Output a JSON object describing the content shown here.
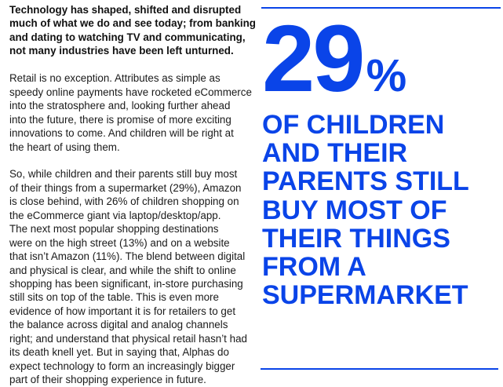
{
  "intro_lines": [
    "Technology has shaped, shifted and disrupted",
    "much of what we do and see today; from banking",
    "and dating to watching TV and communicating,",
    "not many industries have been left unturned."
  ],
  "paragraph1_lines": [
    "Retail is no exception. Attributes as simple as",
    "speedy online payments have rocketed eCommerce",
    "into the stratosphere and, looking further ahead",
    "into the future, there is promise of more exciting",
    "innovations to come. And children will be right at",
    "the heart of using them."
  ],
  "paragraph2_lines": [
    "So, while children and their parents still buy most",
    "of their things from a supermarket (29%), Amazon",
    "is close behind, with 26% of children shopping on",
    "the eCommerce giant via laptop/desktop/app.",
    "The next most popular shopping destinations",
    "were on the high street (13%) and on a website",
    "that isn’t Amazon (11%). The blend between digital",
    "and physical is clear, and while the shift to online",
    "shopping has been significant, in-store purchasing",
    "still sits on top of the table. This is even more",
    "evidence of how important it is for retailers to get",
    "the balance across digital and analog channels",
    "right; and understand that physical retail hasn’t had",
    "its death knell yet. But in saying that, Alphas do",
    "expect technology to form an increasingly bigger",
    "part of their shopping experience in future."
  ],
  "callout": {
    "number": "29",
    "unit": "%",
    "headline_lines": [
      "OF CHILDREN",
      "AND THEIR",
      "PARENTS STILL",
      "BUY MOST OF",
      "THEIR THINGS",
      "FROM A",
      "SUPERMARKET"
    ],
    "accent_color": "#0a44e8"
  }
}
